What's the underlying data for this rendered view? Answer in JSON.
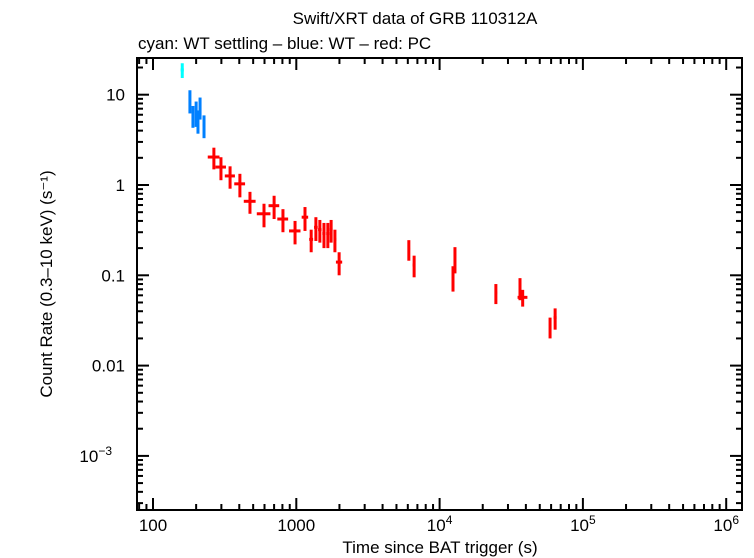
{
  "chart_data": {
    "type": "scatter",
    "title": "Swift/XRT data of GRB 110312A",
    "subtitle": "cyan: WT settling – blue: WT – red: PC",
    "xlabel": "Time since BAT trigger (s)",
    "ylabel": "Count Rate (0.3–10 keV) (s⁻¹)",
    "xscale": "log",
    "yscale": "log",
    "xlim": [
      70,
      1300000
    ],
    "ylim": [
      0.00035,
      25
    ],
    "xticks": [
      {
        "v": 100,
        "label": "100"
      },
      {
        "v": 1000,
        "label": "1000"
      },
      {
        "v": 10000,
        "label": "10",
        "sup": "4"
      },
      {
        "v": 100000,
        "label": "10",
        "sup": "5"
      },
      {
        "v": 1000000,
        "label": "10",
        "sup": "6"
      }
    ],
    "yticks": [
      {
        "v": 10,
        "label": "10"
      },
      {
        "v": 1,
        "label": "1"
      },
      {
        "v": 0.1,
        "label": "0.1"
      },
      {
        "v": 0.01,
        "label": "0.01"
      },
      {
        "v": 0.001,
        "label": "10",
        "sup": "−3"
      }
    ],
    "grid": false,
    "series": [
      {
        "name": "WT settling",
        "color": "#00ffff",
        "points": [
          [
            160,
            18.8,
            4,
            3.5
          ]
        ]
      },
      {
        "name": "WT",
        "color": "#0080ff",
        "points": [
          [
            181,
            8.7,
            3,
            2.5
          ],
          [
            190,
            5.9,
            3,
            1.6
          ],
          [
            200,
            6.4,
            3,
            2
          ],
          [
            206,
            5.2,
            3,
            1.5
          ],
          [
            213,
            7.3,
            3,
            2
          ],
          [
            227,
            4.6,
            5,
            1.3
          ]
        ]
      },
      {
        "name": "PC",
        "color": "#ff0000",
        "points": [
          [
            266,
            2.04,
            25,
            0.55
          ],
          [
            298,
            1.58,
            25,
            0.45
          ],
          [
            345,
            1.26,
            28,
            0.35
          ],
          [
            404,
            1.03,
            35,
            0.3
          ],
          [
            475,
            0.66,
            45,
            0.18
          ],
          [
            595,
            0.48,
            65,
            0.14
          ],
          [
            700,
            0.59,
            60,
            0.17
          ],
          [
            807,
            0.42,
            70,
            0.12
          ],
          [
            980,
            0.31,
            90,
            0.09
          ],
          [
            1150,
            0.44,
            60,
            0.13
          ],
          [
            1270,
            0.25,
            40,
            0.07
          ],
          [
            1370,
            0.34,
            40,
            0.1
          ],
          [
            1460,
            0.32,
            40,
            0.09
          ],
          [
            1560,
            0.29,
            40,
            0.09
          ],
          [
            1660,
            0.29,
            40,
            0.09
          ],
          [
            1750,
            0.32,
            40,
            0.09
          ],
          [
            1860,
            0.25,
            40,
            0.07
          ],
          [
            1990,
            0.14,
            100,
            0.04
          ],
          [
            6100,
            0.195,
            120,
            0.05
          ],
          [
            6640,
            0.13,
            150,
            0.035
          ],
          [
            12800,
            0.155,
            200,
            0.05
          ],
          [
            12400,
            0.096,
            200,
            0.03
          ],
          [
            24700,
            0.064,
            500,
            0.016
          ],
          [
            36400,
            0.073,
            600,
            0.02
          ],
          [
            38000,
            0.057,
            3000,
            0.012
          ],
          [
            59000,
            0.027,
            700,
            0.007
          ],
          [
            64000,
            0.034,
            1500,
            0.009
          ]
        ]
      }
    ]
  }
}
